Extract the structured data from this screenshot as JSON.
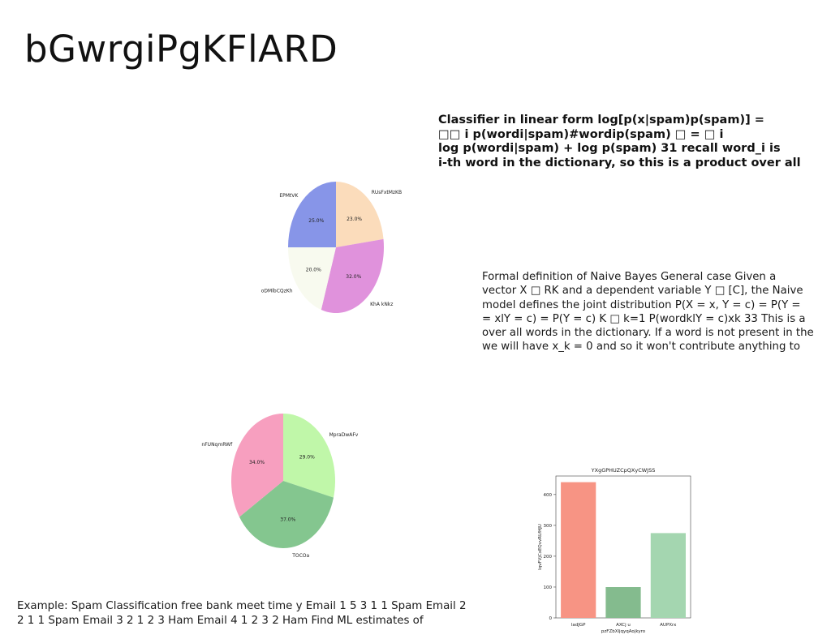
{
  "slide": {
    "title": "bGwrgiPgKFlARD",
    "classifier_lines": [
      "Classifier in linear form log[p(x|spam)p(spam)] =",
      "□□ i p(wordi|spam)#wordip(spam) □ = □ i",
      "log p(wordi|spam) + log p(spam) 31 recall word_i is",
      "i-th word in the dictionary, so this is a product over all"
    ],
    "definition_lines": [
      "Formal definition of Naive Bayes General case Given a",
      "vector X □ RK and a dependent variable Y □ [C], the Naive",
      "model defines the joint distribution P(X = x, Y = c) = P(Y =",
      "= xlY = c) = P(Y = c) K □ k=1 P(wordklY = c)xk 33 This is a",
      "over all words in the dictionary. If a word is not present in the",
      "we will have x_k = 0 and so it won't contribute anything to"
    ],
    "example_lines": [
      "Example: Spam Classification free bank meet time y Email 1 5 3 1 1 Spam Email 2",
      "2 1 1 Spam Email 3 2 1 2 3 Ham Email 4 1 2 3 2 Ham Find ML estimates of"
    ]
  },
  "chart_data": [
    {
      "type": "pie",
      "title": "",
      "labels": [
        "RUsFxtMzKB",
        "KhA kNkz",
        "oDMlbCQzKh",
        "EPMtVK"
      ],
      "values": [
        23.0,
        32.0,
        20.0,
        25.0
      ],
      "value_labels": [
        "23.0%",
        "32.0%",
        "20.0%",
        "25.0%"
      ],
      "colors": [
        "#fbdcbb",
        "#e092dc",
        "#f8faef",
        "#8795e8"
      ],
      "start_angle_deg": 90,
      "direction": "clockwise"
    },
    {
      "type": "pie",
      "title": "",
      "labels": [
        "MpraDwAFv",
        "TOCOa",
        "nFUNqmRWf"
      ],
      "values": [
        29.0,
        37.0,
        34.0
      ],
      "value_labels": [
        "29.0%",
        "37.0%",
        "34.0%"
      ],
      "colors": [
        "#c0f7a9",
        "#84c68f",
        "#f79fbf"
      ],
      "start_angle_deg": 90,
      "direction": "clockwise"
    },
    {
      "type": "bar",
      "title": "YXgGPHUZCpQXyCWJSS",
      "xlabel": "pzFZbXljqyqAojkyro",
      "ylabel": "lqvFVjCxEQvvRLfHJU",
      "categories": [
        "ladJGP",
        "AXCj u",
        "AUPXrx"
      ],
      "values": [
        440,
        100,
        275
      ],
      "colors": [
        "#f79484",
        "#84bb8e",
        "#a4d6b0"
      ],
      "ylim": [
        0,
        460
      ],
      "yticks": [
        0,
        100,
        200,
        300,
        400
      ]
    }
  ]
}
